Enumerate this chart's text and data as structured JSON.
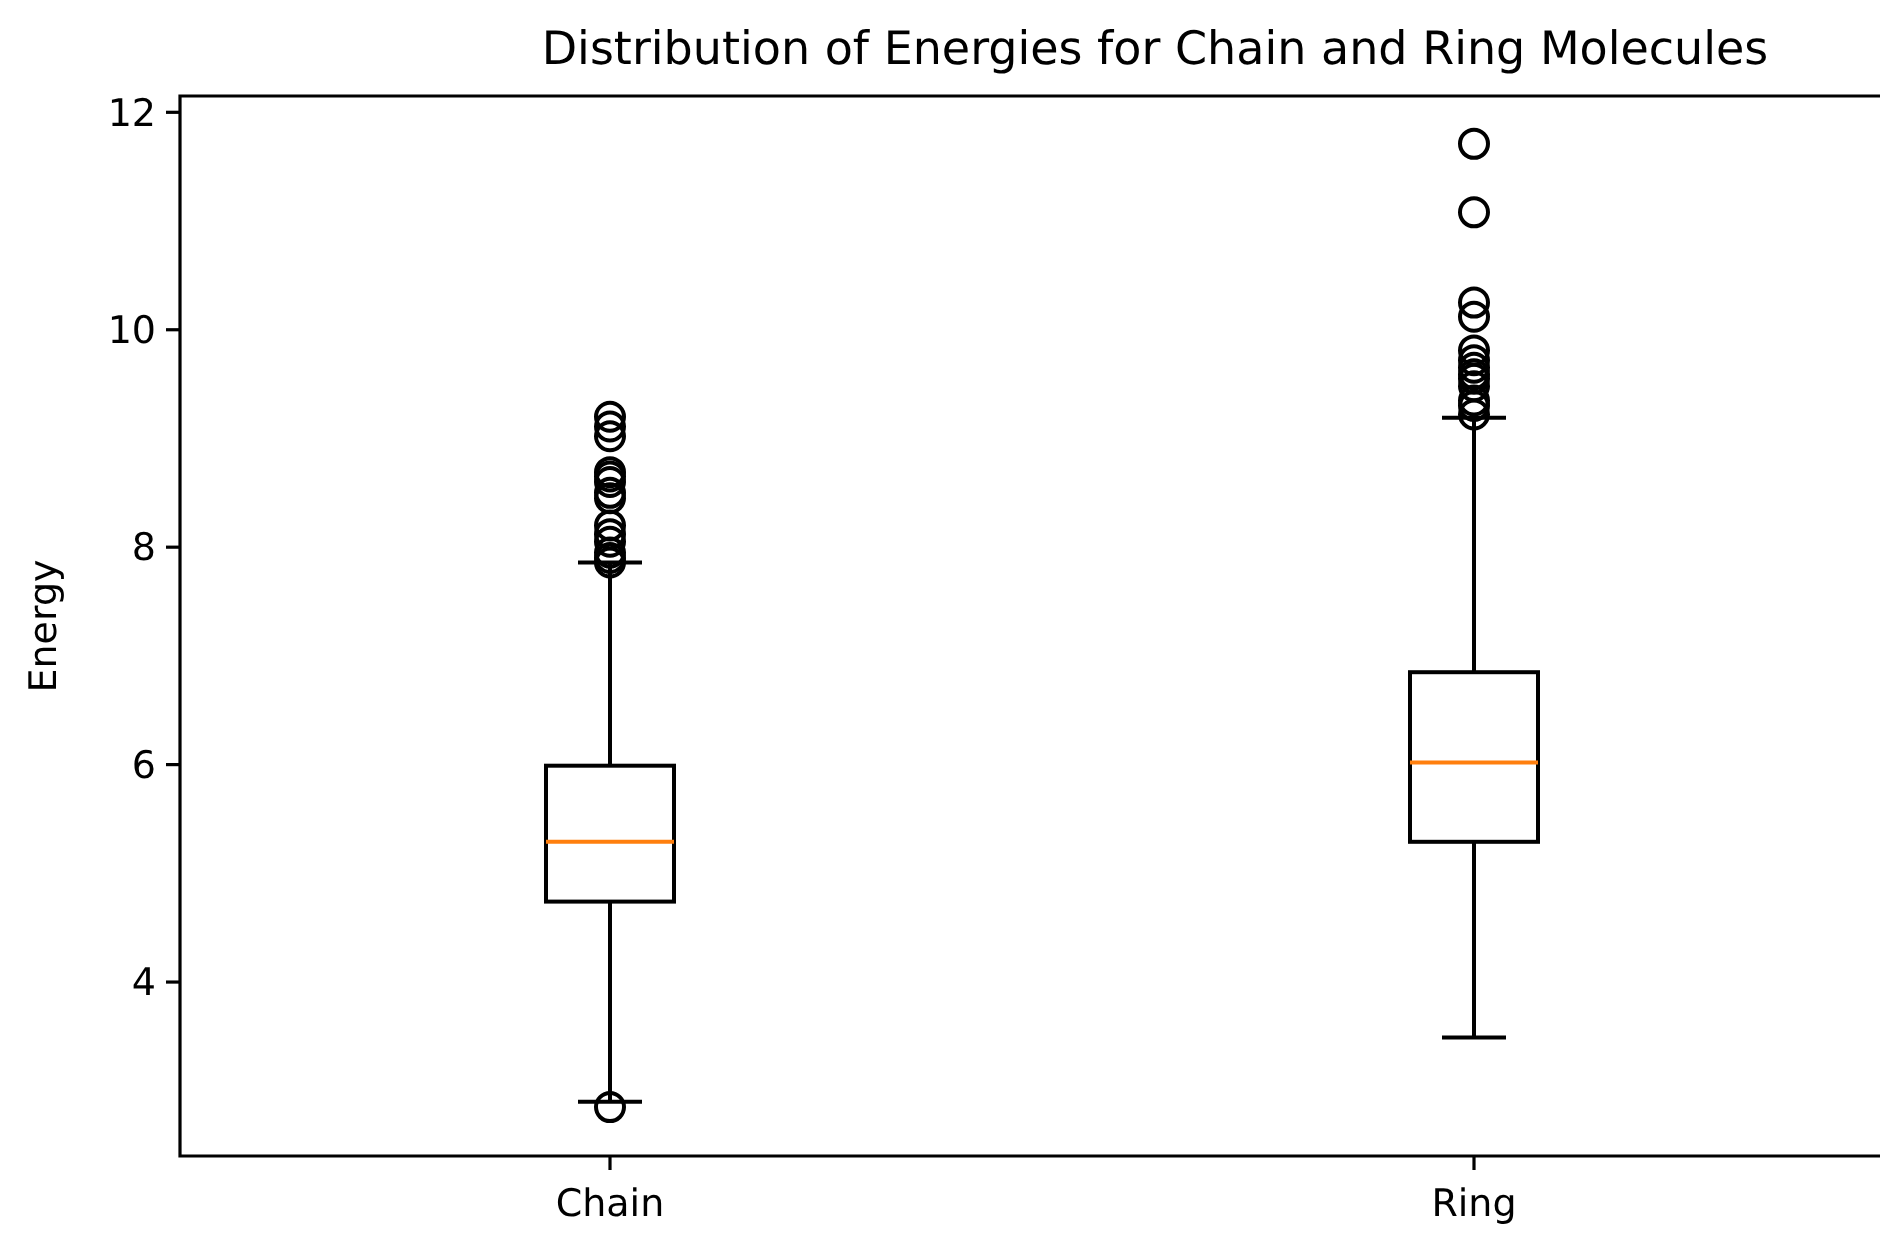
{
  "chart_data": {
    "type": "box",
    "title": "Distribution of Energies for Chain and Ring Molecules",
    "ylabel": "Energy",
    "categories": [
      "Chain",
      "Ring"
    ],
    "ylim": [
      2.4,
      12.15
    ],
    "yticks": [
      4,
      6,
      8,
      10,
      12
    ],
    "grid": false,
    "boxes": [
      {
        "low": 2.9,
        "q1": 4.74,
        "median": 5.29,
        "q3": 5.99,
        "high": 7.86,
        "outliers": [
          2.85,
          7.86,
          7.9,
          7.95,
          8.05,
          8.12,
          8.2,
          8.45,
          8.5,
          8.6,
          8.65,
          8.69,
          9.02,
          9.11,
          9.2
        ]
      },
      {
        "low": 3.49,
        "q1": 5.29,
        "median": 6.02,
        "q3": 6.85,
        "high": 9.19,
        "outliers": [
          9.22,
          9.3,
          9.35,
          9.48,
          9.55,
          9.59,
          9.65,
          9.72,
          9.81,
          10.12,
          10.25,
          11.08,
          11.71
        ]
      }
    ]
  }
}
